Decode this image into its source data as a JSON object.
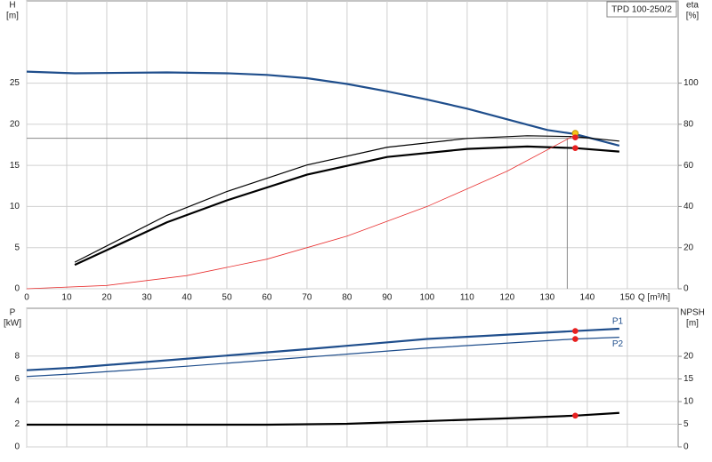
{
  "chart_data": [
    {
      "type": "line",
      "title": "TPD 100-250/2",
      "x_label": "Q [m³/h]",
      "y_label": [
        "H",
        "[m]"
      ],
      "y2_label": [
        "eta",
        "[%]"
      ],
      "xlim": [
        0,
        162.7
      ],
      "xticks": [
        0,
        10,
        20,
        30,
        40,
        50,
        60,
        70,
        80,
        90,
        100,
        110,
        120,
        130,
        140,
        150
      ],
      "ylim": [
        0,
        35
      ],
      "yticks": [
        0,
        5,
        10,
        15,
        20,
        25
      ],
      "y2lim": [
        0,
        140
      ],
      "y2ticks": [
        0,
        20,
        40,
        60,
        80,
        100
      ],
      "grid": true,
      "series": [
        {
          "color": "#1f4e8c",
          "width": 2.2,
          "x": [
            0,
            12,
            35,
            50,
            60,
            70,
            80,
            90,
            100,
            110,
            120,
            130,
            137,
            148
          ],
          "values": [
            26.4,
            26.2,
            26.3,
            26.2,
            26.0,
            25.6,
            24.9,
            24.0,
            23.0,
            21.9,
            20.6,
            19.3,
            18.8,
            17.4
          ]
        },
        {
          "color": "#000000",
          "width": 1.2,
          "axis": "y2",
          "x": [
            12,
            35,
            50,
            70,
            90,
            110,
            125,
            137,
            148
          ],
          "values": [
            12.9,
            35.7,
            47.3,
            60.2,
            68.8,
            73.1,
            74.4,
            74.0,
            71.8
          ]
        },
        {
          "color": "#000000",
          "width": 2.2,
          "axis": "y2",
          "x": [
            12,
            35,
            50,
            70,
            90,
            110,
            125,
            137,
            148
          ],
          "values": [
            11.6,
            32.3,
            43.0,
            55.5,
            64.1,
            68.0,
            69.2,
            68.4,
            66.7
          ]
        },
        {
          "color": "#e83030",
          "width": 0.8,
          "x": [
            0,
            20,
            40,
            60,
            80,
            100,
            120,
            137
          ],
          "values": [
            0,
            0.4,
            1.6,
            3.6,
            6.4,
            10.0,
            14.3,
            18.7
          ]
        }
      ],
      "duty_point": {
        "x": 135,
        "y": 18.3
      },
      "markers": [
        {
          "x": 137,
          "y": 18.9,
          "color": "#f5c518"
        },
        {
          "x": 137,
          "y": 18.4,
          "color": "#e82020"
        },
        {
          "x": 137,
          "y": 68.4,
          "color": "#e82020",
          "axis": "y2"
        }
      ]
    },
    {
      "type": "line",
      "y_label": [
        "P",
        "[kW]"
      ],
      "y2_label": [
        "NPSH",
        "[m]"
      ],
      "xlim": [
        0,
        162.7
      ],
      "ylim": [
        0,
        12.2
      ],
      "yticks": [
        0,
        2,
        4,
        6,
        8
      ],
      "y2lim": [
        0,
        30.6
      ],
      "y2ticks": [
        0,
        5,
        10,
        15,
        20
      ],
      "grid": true,
      "series": [
        {
          "name": "P1",
          "color": "#1f4e8c",
          "width": 2.2,
          "x": [
            0,
            12,
            40,
            70,
            100,
            137,
            148
          ],
          "values": [
            6.75,
            6.98,
            7.76,
            8.6,
            9.5,
            10.2,
            10.4
          ]
        },
        {
          "name": "P2",
          "color": "#1f4e8c",
          "width": 1.2,
          "x": [
            0,
            12,
            40,
            70,
            100,
            137,
            148
          ],
          "values": [
            6.2,
            6.43,
            7.1,
            7.9,
            8.7,
            9.5,
            9.65
          ]
        },
        {
          "color": "#000000",
          "width": 2.2,
          "axis": "y2",
          "x": [
            0,
            12,
            60,
            80,
            100,
            120,
            137,
            148
          ],
          "values": [
            4.9,
            4.9,
            4.9,
            5.1,
            5.7,
            6.3,
            6.9,
            7.5
          ]
        }
      ],
      "markers": [
        {
          "x": 137,
          "y": 10.2,
          "color": "#e82020"
        },
        {
          "x": 137,
          "y": 9.5,
          "color": "#e82020"
        },
        {
          "x": 137,
          "y": 6.9,
          "color": "#e82020",
          "axis": "y2"
        }
      ]
    }
  ]
}
